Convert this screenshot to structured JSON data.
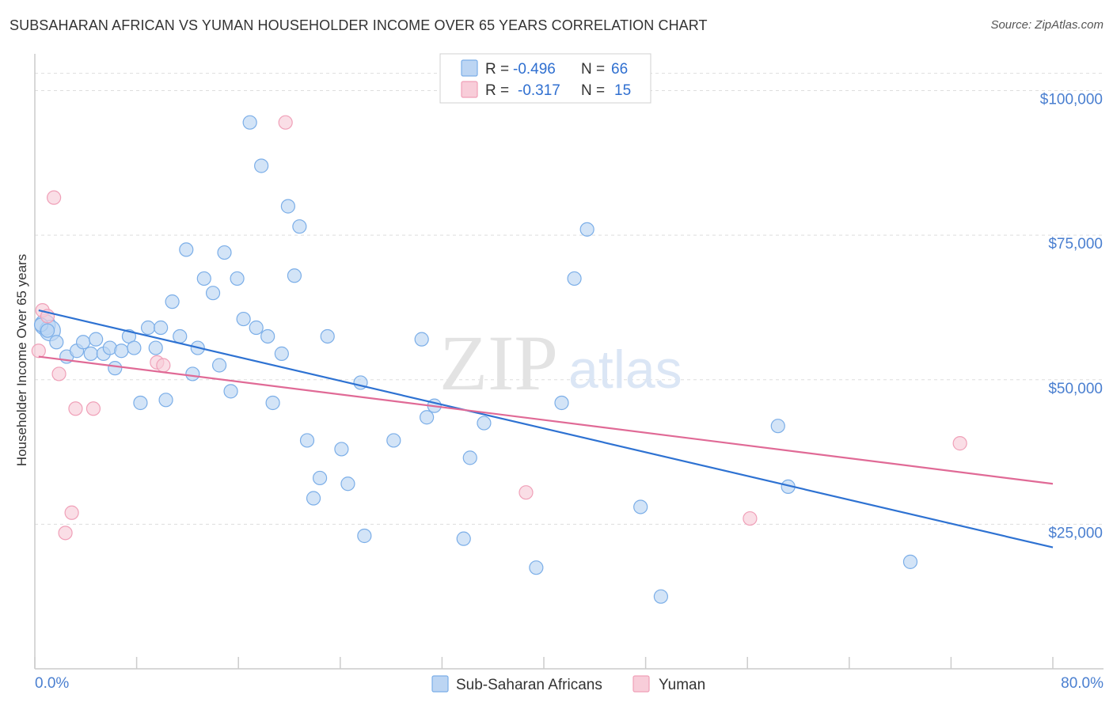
{
  "title": "SUBSAHARAN AFRICAN VS YUMAN HOUSEHOLDER INCOME OVER 65 YEARS CORRELATION CHART",
  "source": "Source: ZipAtlas.com",
  "watermark": {
    "part1": "ZIP",
    "part2": "atlas"
  },
  "legend": {
    "r_label": "R =",
    "n_label": "N =",
    "rows": [
      {
        "r": "-0.496",
        "n": "66"
      },
      {
        "r": "-0.317",
        "n": "15"
      }
    ]
  },
  "chart_data": {
    "type": "scatter",
    "title": "SUBSAHARAN AFRICAN VS YUMAN HOUSEHOLDER INCOME OVER 65 YEARS CORRELATION CHART",
    "xlabel": "",
    "ylabel": "Householder Income Over 65 years",
    "xlim": [
      0,
      80
    ],
    "ylim": [
      0,
      105000
    ],
    "x_tick_labels": [
      "0.0%",
      "80.0%"
    ],
    "y_ticks": [
      {
        "value": 25000,
        "label": "$25,000"
      },
      {
        "value": 50000,
        "label": "$50,000"
      },
      {
        "value": 75000,
        "label": "$75,000"
      },
      {
        "value": 100000,
        "label": "$100,000"
      }
    ],
    "grid": true,
    "series": [
      {
        "name": "Sub-Saharan Africans",
        "color": "#7baee8",
        "fill": "#bcd5f3",
        "trend_color": "#2e72d2",
        "trend": {
          "x0": 0.3,
          "y0": 62000,
          "x1": 80,
          "y1": 21000
        },
        "points": [
          [
            0.5,
            59500
          ],
          [
            1.0,
            58500
          ],
          [
            1.7,
            56500
          ],
          [
            2.5,
            54000
          ],
          [
            3.3,
            55000
          ],
          [
            3.8,
            56500
          ],
          [
            4.4,
            54500
          ],
          [
            4.8,
            57000
          ],
          [
            5.4,
            54500
          ],
          [
            5.9,
            55500
          ],
          [
            6.3,
            52000
          ],
          [
            6.8,
            55000
          ],
          [
            7.4,
            57500
          ],
          [
            7.8,
            55500
          ],
          [
            8.3,
            46000
          ],
          [
            8.9,
            59000
          ],
          [
            9.5,
            55500
          ],
          [
            9.9,
            59000
          ],
          [
            10.3,
            46500
          ],
          [
            10.8,
            63500
          ],
          [
            11.4,
            57500
          ],
          [
            11.9,
            72500
          ],
          [
            12.4,
            51000
          ],
          [
            12.8,
            55500
          ],
          [
            13.3,
            67500
          ],
          [
            14.0,
            65000
          ],
          [
            14.5,
            52500
          ],
          [
            14.9,
            72000
          ],
          [
            15.4,
            48000
          ],
          [
            15.9,
            67500
          ],
          [
            16.4,
            60500
          ],
          [
            16.9,
            94500
          ],
          [
            17.4,
            59000
          ],
          [
            17.8,
            87000
          ],
          [
            18.3,
            57500
          ],
          [
            18.7,
            46000
          ],
          [
            19.4,
            54500
          ],
          [
            19.9,
            80000
          ],
          [
            20.4,
            68000
          ],
          [
            20.8,
            76500
          ],
          [
            21.4,
            39500
          ],
          [
            21.9,
            29500
          ],
          [
            22.4,
            33000
          ],
          [
            23.0,
            57500
          ],
          [
            24.1,
            38000
          ],
          [
            24.6,
            32000
          ],
          [
            25.6,
            49500
          ],
          [
            25.9,
            23000
          ],
          [
            28.2,
            39500
          ],
          [
            30.4,
            57000
          ],
          [
            30.8,
            43500
          ],
          [
            31.4,
            45500
          ],
          [
            33.7,
            22500
          ],
          [
            34.2,
            36500
          ],
          [
            35.3,
            42500
          ],
          [
            39.4,
            17500
          ],
          [
            41.4,
            46000
          ],
          [
            42.4,
            67500
          ],
          [
            43.4,
            76000
          ],
          [
            47.6,
            28000
          ],
          [
            49.2,
            12500
          ],
          [
            58.4,
            42000
          ],
          [
            59.2,
            31500
          ],
          [
            68.8,
            18500
          ]
        ],
        "big_points": [
          [
            0.8,
            59500
          ],
          [
            1.2,
            58500
          ]
        ]
      },
      {
        "name": "Yuman",
        "color": "#f0a0b8",
        "fill": "#f8cdd9",
        "trend_color": "#e06a96",
        "trend": {
          "x0": 0.3,
          "y0": 54000,
          "x1": 80,
          "y1": 32000
        },
        "points": [
          [
            0.3,
            55000
          ],
          [
            0.6,
            62000
          ],
          [
            1.0,
            61000
          ],
          [
            1.5,
            81500
          ],
          [
            1.9,
            51000
          ],
          [
            2.4,
            23500
          ],
          [
            2.9,
            27000
          ],
          [
            3.2,
            45000
          ],
          [
            4.6,
            45000
          ],
          [
            9.6,
            53000
          ],
          [
            10.1,
            52500
          ],
          [
            19.7,
            94500
          ],
          [
            38.6,
            30500
          ],
          [
            56.2,
            26000
          ],
          [
            72.7,
            39000
          ]
        ],
        "big_points": []
      }
    ]
  }
}
